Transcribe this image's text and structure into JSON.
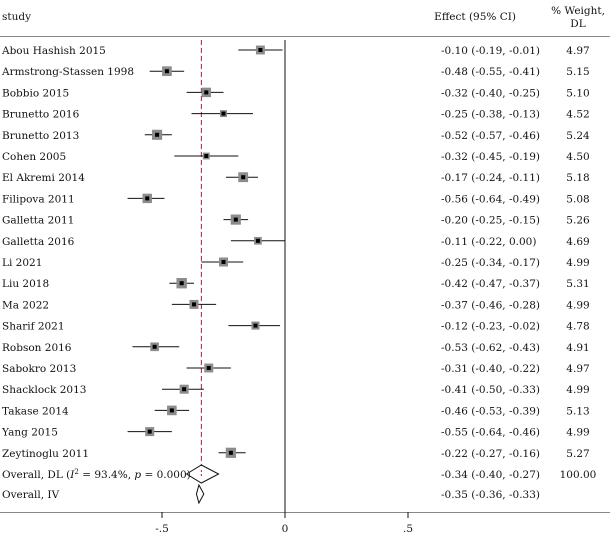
{
  "chart_data": {
    "type": "forest",
    "header": {
      "study": "study",
      "effect": "Effect (95% CI)",
      "weight_line1": "% Weight,",
      "weight_line2": "DL"
    },
    "xlim": [
      -0.62,
      0.62
    ],
    "xticks": [
      -0.5,
      0,
      0.5
    ],
    "xtick_labels": [
      "-.5",
      "0",
      ".5"
    ],
    "overall_reference": -0.34,
    "studies": [
      {
        "name": "Abou Hashish 2015",
        "est": -0.1,
        "lo": -0.19,
        "hi": -0.01,
        "ci_text": "-0.10 (-0.19, -0.01)",
        "weight": "4.97"
      },
      {
        "name": "Armstrong-Stassen 1998",
        "est": -0.48,
        "lo": -0.55,
        "hi": -0.41,
        "ci_text": "-0.48 (-0.55, -0.41)",
        "weight": "5.15"
      },
      {
        "name": "Bobbio 2015",
        "est": -0.32,
        "lo": -0.4,
        "hi": -0.25,
        "ci_text": "-0.32 (-0.40, -0.25)",
        "weight": "5.10"
      },
      {
        "name": "Brunetto 2016",
        "est": -0.25,
        "lo": -0.38,
        "hi": -0.13,
        "ci_text": "-0.25 (-0.38, -0.13)",
        "weight": "4.52"
      },
      {
        "name": "Brunetto 2013",
        "est": -0.52,
        "lo": -0.57,
        "hi": -0.46,
        "ci_text": "-0.52 (-0.57, -0.46)",
        "weight": "5.24"
      },
      {
        "name": "Cohen 2005",
        "est": -0.32,
        "lo": -0.45,
        "hi": -0.19,
        "ci_text": "-0.32 (-0.45, -0.19)",
        "weight": "4.50"
      },
      {
        "name": "El Akremi 2014",
        "est": -0.17,
        "lo": -0.24,
        "hi": -0.11,
        "ci_text": "-0.17 (-0.24, -0.11)",
        "weight": "5.18"
      },
      {
        "name": "Filipova 2011",
        "est": -0.56,
        "lo": -0.64,
        "hi": -0.49,
        "ci_text": "-0.56 (-0.64, -0.49)",
        "weight": "5.08"
      },
      {
        "name": "Galletta 2011",
        "est": -0.2,
        "lo": -0.25,
        "hi": -0.15,
        "ci_text": "-0.20 (-0.25, -0.15)",
        "weight": "5.26"
      },
      {
        "name": "Galletta 2016",
        "est": -0.11,
        "lo": -0.22,
        "hi": 0.0,
        "ci_text": "-0.11 (-0.22, 0.00)",
        "weight": "4.69"
      },
      {
        "name": "Li 2021",
        "est": -0.25,
        "lo": -0.34,
        "hi": -0.17,
        "ci_text": "-0.25 (-0.34, -0.17)",
        "weight": "4.99"
      },
      {
        "name": "Liu 2018",
        "est": -0.42,
        "lo": -0.47,
        "hi": -0.37,
        "ci_text": "-0.42 (-0.47, -0.37)",
        "weight": "5.31"
      },
      {
        "name": "Ma 2022",
        "est": -0.37,
        "lo": -0.46,
        "hi": -0.28,
        "ci_text": "-0.37 (-0.46, -0.28)",
        "weight": "4.99"
      },
      {
        "name": "Sharif 2021",
        "est": -0.12,
        "lo": -0.23,
        "hi": -0.02,
        "ci_text": "-0.12 (-0.23, -0.02)",
        "weight": "4.78"
      },
      {
        "name": "Robson 2016",
        "est": -0.53,
        "lo": -0.62,
        "hi": -0.43,
        "ci_text": "-0.53 (-0.62, -0.43)",
        "weight": "4.91"
      },
      {
        "name": "Sabokro 2013",
        "est": -0.31,
        "lo": -0.4,
        "hi": -0.22,
        "ci_text": "-0.31 (-0.40, -0.22)",
        "weight": "4.97"
      },
      {
        "name": "Shacklock 2013",
        "est": -0.41,
        "lo": -0.5,
        "hi": -0.33,
        "ci_text": "-0.41 (-0.50, -0.33)",
        "weight": "4.99"
      },
      {
        "name": "Takase 2014",
        "est": -0.46,
        "lo": -0.53,
        "hi": -0.39,
        "ci_text": "-0.46 (-0.53, -0.39)",
        "weight": "5.13"
      },
      {
        "name": "Yang 2015",
        "est": -0.55,
        "lo": -0.64,
        "hi": -0.46,
        "ci_text": "-0.55 (-0.64, -0.46)",
        "weight": "4.99"
      },
      {
        "name": "Zeytinoglu 2011",
        "est": -0.22,
        "lo": -0.27,
        "hi": -0.16,
        "ci_text": "-0.22 (-0.27, -0.16)",
        "weight": "5.27"
      }
    ],
    "overall": [
      {
        "label_prefix": "Overall, DL (",
        "label_i2_symbol": "I",
        "label_i2_sup": "2",
        "label_suffix": " = 93.4%, ",
        "label_p": "p",
        "label_p_value": " = 0.000)",
        "est": -0.34,
        "lo": -0.4,
        "hi": -0.27,
        "ci_text": "-0.34 (-0.40, -0.27)",
        "weight": "100.00"
      },
      {
        "label": "Overall, IV",
        "est": -0.35,
        "lo": -0.36,
        "hi": -0.33,
        "ci_text": "-0.35 (-0.36, -0.33)",
        "weight": ""
      }
    ],
    "colors": {
      "ink": "#111111",
      "marker": "#000000",
      "box": "#8c8c8c",
      "ref_line": "#9b2335",
      "rule": "#888888"
    }
  }
}
